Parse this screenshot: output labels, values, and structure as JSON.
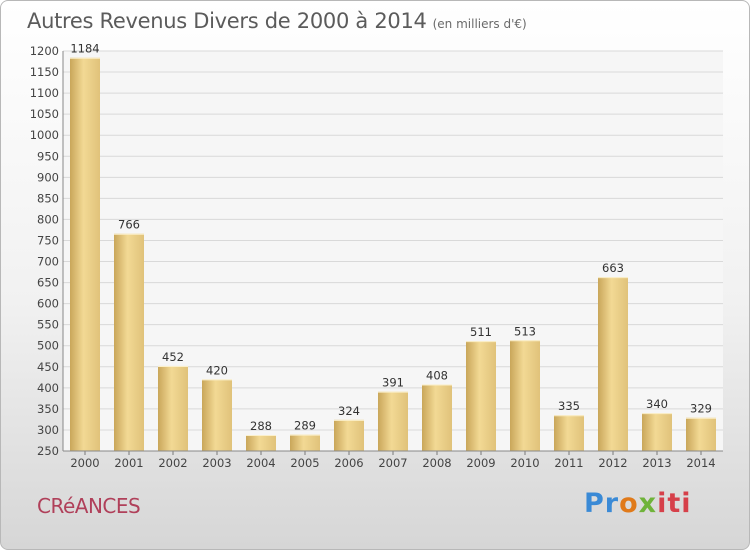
{
  "title": "Autres Revenus Divers de 2000 à 2014",
  "subtitle": "(en milliers d'€)",
  "commune": "CRéANCES",
  "logo": {
    "p1": "Pr",
    "p2": "o",
    "p3": "x",
    "p4": "iti"
  },
  "chart_data": {
    "type": "bar",
    "categories": [
      "2000",
      "2001",
      "2002",
      "2003",
      "2004",
      "2005",
      "2006",
      "2007",
      "2008",
      "2009",
      "2010",
      "2011",
      "2012",
      "2013",
      "2014"
    ],
    "values": [
      1184,
      766,
      452,
      420,
      288,
      289,
      324,
      391,
      408,
      511,
      513,
      335,
      663,
      340,
      329
    ],
    "ylim": [
      250,
      1200
    ],
    "ytick_step": 50,
    "grid": true,
    "bar_color": "#e8cd84"
  }
}
